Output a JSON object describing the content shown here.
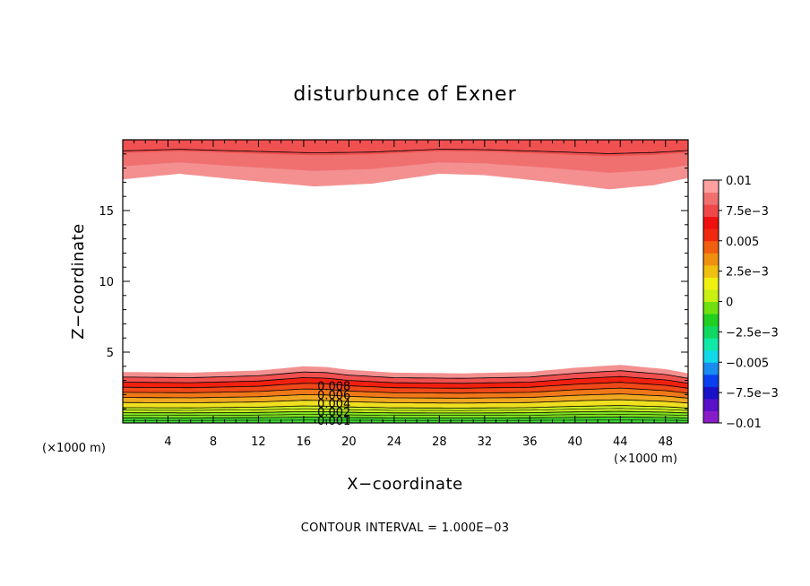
{
  "chart_data": {
    "type": "heatmap",
    "title": "disturbunce of Exner",
    "xlabel": "X−coordinate",
    "ylabel": "Z−coordinate",
    "x_unit_left": "(×1000 m)",
    "x_unit_right": "(×1000 m)",
    "xlim": [
      0,
      50
    ],
    "ylim": [
      0,
      20
    ],
    "x_ticks": [
      4,
      8,
      12,
      16,
      20,
      24,
      28,
      32,
      36,
      40,
      44,
      48
    ],
    "y_ticks": [
      5,
      10,
      15
    ],
    "contour_interval_text": "CONTOUR INTERVAL = 1.000E−03",
    "contour_interval": 0.001,
    "contour_labels": [
      "0.008",
      "0.006",
      "0.004",
      "0.002",
      "0.001"
    ],
    "colorbar": {
      "min": -0.01,
      "max": 0.01,
      "tick_labels": [
        "0.01",
        "7.5e−3",
        "0.005",
        "2.5e−3",
        "0",
        "−2.5e−3",
        "−0.005",
        "−7.5e−3",
        "−0.01"
      ],
      "colors": [
        "#8a1cc8",
        "#5a10c8",
        "#1a10c8",
        "#0a40f0",
        "#1a8cf0",
        "#10d8e8",
        "#10e8a8",
        "#10d860",
        "#20d020",
        "#70e010",
        "#c8f010",
        "#f0f010",
        "#f0c010",
        "#f09010",
        "#f06010",
        "#f02810",
        "#f01010",
        "#f04848",
        "#f07070",
        "#ffa0a0"
      ]
    },
    "bottom_band": {
      "fill_colors": [
        "#40d830",
        "#80e020",
        "#c8f020",
        "#f0e020",
        "#f0a820",
        "#f07818",
        "#f04818",
        "#f02010",
        "#f05050",
        "#f49090"
      ],
      "top_profile": [
        [
          0,
          3.6
        ],
        [
          6,
          3.55
        ],
        [
          12,
          3.7
        ],
        [
          16,
          4.0
        ],
        [
          18,
          3.95
        ],
        [
          20,
          3.75
        ],
        [
          24,
          3.55
        ],
        [
          30,
          3.5
        ],
        [
          36,
          3.6
        ],
        [
          40,
          3.9
        ],
        [
          44,
          4.1
        ],
        [
          48,
          3.8
        ],
        [
          50,
          3.5
        ]
      ]
    },
    "top_band": {
      "fill_colors": [
        "#f49090",
        "#f07070",
        "#f05050"
      ],
      "bottom_profile": [
        [
          0,
          17.2
        ],
        [
          5,
          17.6
        ],
        [
          10,
          17.2
        ],
        [
          17,
          16.7
        ],
        [
          22,
          16.9
        ],
        [
          28,
          17.6
        ],
        [
          32,
          17.5
        ],
        [
          38,
          17.0
        ],
        [
          43,
          16.5
        ],
        [
          47,
          16.8
        ],
        [
          50,
          17.3
        ]
      ]
    }
  }
}
